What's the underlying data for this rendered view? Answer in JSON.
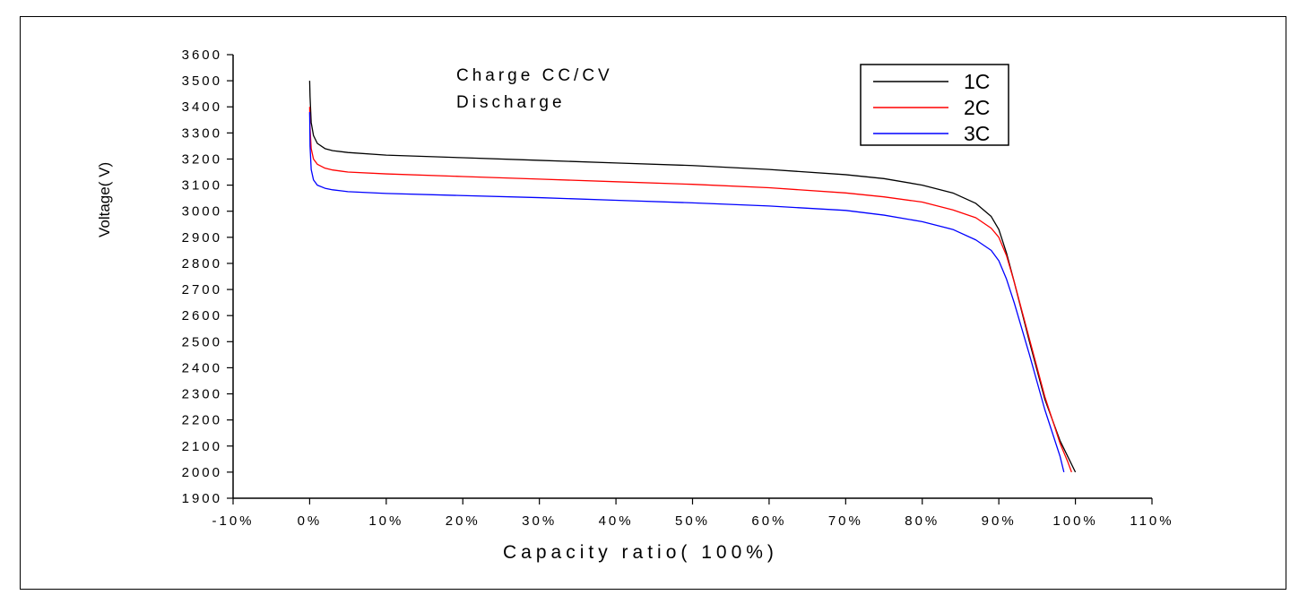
{
  "chart_data": {
    "type": "line",
    "title": "",
    "annotations": [
      "Charge CC/CV",
      "Discharge"
    ],
    "xlabel": "Capacity ratio(   100%)",
    "ylabel": "Voltage(   V)",
    "xlim": [
      -10,
      110
    ],
    "ylim": [
      1900,
      3600
    ],
    "x_ticks": [
      -10,
      0,
      10,
      20,
      30,
      40,
      50,
      60,
      70,
      80,
      90,
      100,
      110
    ],
    "x_tick_labels": [
      "-10%",
      "0%",
      "10%",
      "20%",
      "30%",
      "40%",
      "50%",
      "60%",
      "70%",
      "80%",
      "90%",
      "100%",
      "110%"
    ],
    "y_ticks": [
      1900,
      2000,
      2100,
      2200,
      2300,
      2400,
      2500,
      2600,
      2700,
      2800,
      2900,
      3000,
      3100,
      3200,
      3300,
      3400,
      3500,
      3600
    ],
    "y_tick_labels": [
      "1900",
      "2000",
      "2100",
      "2200",
      "2300",
      "2400",
      "2500",
      "2600",
      "2700",
      "2800",
      "2900",
      "3000",
      "3100",
      "3200",
      "3300",
      "3400",
      "3500",
      "3600"
    ],
    "grid": false,
    "legend_position": "top-right",
    "series": [
      {
        "name": "1C",
        "color": "#000000",
        "x": [
          0,
          0.05,
          0.2,
          0.5,
          1,
          2,
          3,
          5,
          10,
          20,
          30,
          40,
          50,
          60,
          70,
          75,
          80,
          84,
          87,
          89,
          90,
          91,
          92,
          94,
          96,
          98,
          99,
          100
        ],
        "y": [
          3500,
          3440,
          3340,
          3290,
          3260,
          3240,
          3232,
          3225,
          3215,
          3205,
          3195,
          3185,
          3175,
          3160,
          3140,
          3125,
          3100,
          3070,
          3030,
          2980,
          2930,
          2840,
          2730,
          2500,
          2280,
          2120,
          2060,
          2000
        ]
      },
      {
        "name": "2C",
        "color": "#ff0000",
        "x": [
          0,
          0.05,
          0.2,
          0.5,
          1,
          2,
          3,
          5,
          10,
          20,
          30,
          40,
          50,
          60,
          70,
          75,
          80,
          84,
          87,
          89,
          90,
          91,
          92,
          94,
          96,
          98,
          99,
          99.5
        ],
        "y": [
          3400,
          3320,
          3240,
          3200,
          3180,
          3165,
          3158,
          3150,
          3143,
          3133,
          3123,
          3113,
          3103,
          3090,
          3070,
          3055,
          3035,
          3005,
          2975,
          2935,
          2900,
          2830,
          2730,
          2510,
          2290,
          2110,
          2040,
          2000
        ]
      },
      {
        "name": "3C",
        "color": "#0000ff",
        "x": [
          0,
          0.05,
          0.2,
          0.5,
          1,
          2,
          3,
          5,
          10,
          20,
          30,
          40,
          50,
          60,
          70,
          75,
          80,
          84,
          87,
          89,
          90,
          91,
          92,
          94,
          96,
          98,
          98.5
        ],
        "y": [
          3380,
          3250,
          3160,
          3120,
          3100,
          3088,
          3082,
          3075,
          3068,
          3060,
          3052,
          3042,
          3032,
          3020,
          3003,
          2985,
          2960,
          2930,
          2890,
          2850,
          2810,
          2740,
          2650,
          2450,
          2240,
          2060,
          2000
        ]
      }
    ]
  }
}
